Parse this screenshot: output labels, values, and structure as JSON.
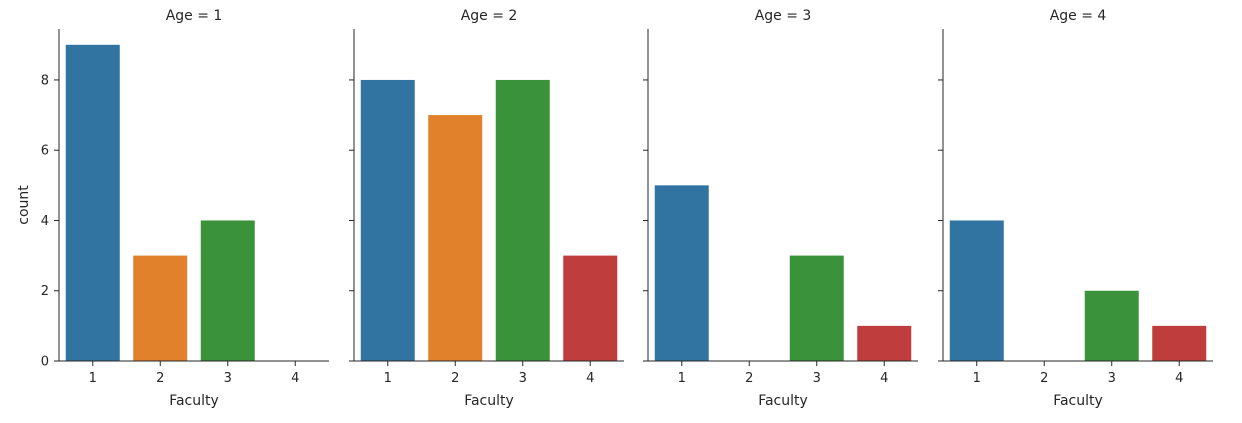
{
  "chart_data": {
    "type": "bar",
    "layout": "facet-columns",
    "facet_variable": "Age",
    "ylabel": "count",
    "xlabel": "Faculty",
    "categories": [
      "1",
      "2",
      "3",
      "4"
    ],
    "ylim": [
      0,
      9.45
    ],
    "yticks": [
      0,
      2,
      4,
      6,
      8
    ],
    "shared_y": true,
    "grid": false,
    "colors": {
      "1": "#3274a1",
      "2": "#e1812c",
      "3": "#3a923a",
      "4": "#c03d3e"
    },
    "panels": [
      {
        "title": "Age = 1",
        "values": [
          9,
          3,
          4,
          0
        ]
      },
      {
        "title": "Age = 2",
        "values": [
          8,
          7,
          8,
          3
        ]
      },
      {
        "title": "Age = 3",
        "values": [
          5,
          0,
          3,
          1
        ]
      },
      {
        "title": "Age = 4",
        "values": [
          4,
          0,
          2,
          1
        ]
      }
    ]
  }
}
